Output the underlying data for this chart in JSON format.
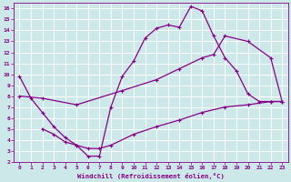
{
  "xlabel": "Windchill (Refroidissement éolien,°C)",
  "bg_color": "#cce8e8",
  "line_color": "#880088",
  "grid_color": "#aadddd",
  "xlim": [
    -0.5,
    23.5
  ],
  "ylim": [
    2,
    16.5
  ],
  "xticks": [
    0,
    1,
    2,
    3,
    4,
    5,
    6,
    7,
    8,
    9,
    10,
    11,
    12,
    13,
    14,
    15,
    16,
    17,
    18,
    19,
    20,
    21,
    22,
    23
  ],
  "yticks": [
    2,
    3,
    4,
    5,
    6,
    7,
    8,
    9,
    10,
    11,
    12,
    13,
    14,
    15,
    16
  ],
  "line1_x": [
    0,
    1,
    2,
    3,
    4,
    5,
    6,
    7,
    8,
    9,
    10,
    11,
    12,
    13,
    14,
    15,
    16,
    17,
    18,
    19,
    20,
    21,
    22,
    23
  ],
  "line1_y": [
    9.8,
    7.8,
    6.5,
    5.2,
    4.2,
    3.5,
    2.5,
    2.5,
    7.0,
    9.8,
    11.2,
    13.3,
    14.2,
    14.5,
    14.3,
    16.2,
    15.8,
    13.5,
    11.5,
    10.3,
    8.2,
    7.5,
    7.5,
    7.5
  ],
  "line2_x": [
    0,
    2,
    5,
    9,
    12,
    14,
    16,
    17,
    18,
    20,
    22,
    23
  ],
  "line2_y": [
    8.0,
    7.8,
    7.2,
    8.5,
    9.5,
    10.5,
    11.5,
    11.8,
    13.5,
    13.0,
    11.5,
    7.5
  ],
  "line3_x": [
    2,
    3,
    4,
    5,
    6,
    7,
    8,
    10,
    12,
    14,
    16,
    18,
    20,
    22,
    23
  ],
  "line3_y": [
    5.0,
    4.5,
    3.8,
    3.5,
    3.2,
    3.2,
    3.5,
    4.5,
    5.2,
    5.8,
    6.5,
    7.0,
    7.2,
    7.5,
    7.5
  ]
}
